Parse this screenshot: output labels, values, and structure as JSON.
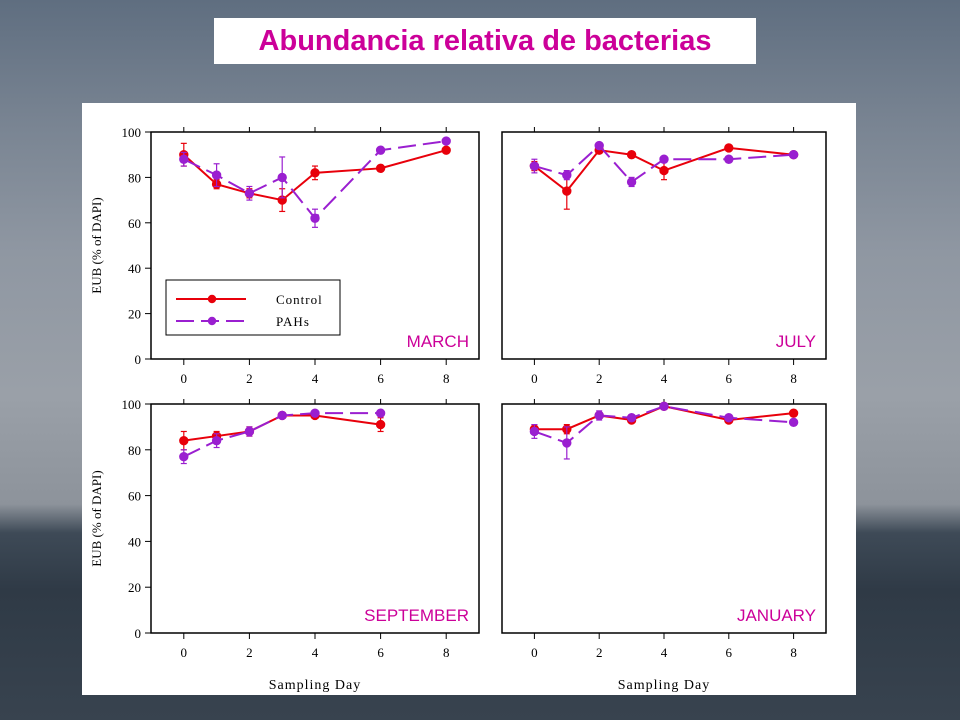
{
  "title": "Abundancia relativa de bacterias",
  "colors": {
    "title": "#cc0099",
    "control": "#e8000b",
    "pahs": "#9a1fd0",
    "month_label": "#cc0099"
  },
  "chart_data": [
    {
      "type": "line",
      "month": "MARCH",
      "xlabel": "",
      "ylabel": "EUB (% of DAPI)",
      "xlim": [
        -1,
        9
      ],
      "ylim": [
        0,
        100
      ],
      "xticks": [
        0,
        2,
        4,
        6,
        8
      ],
      "yticks": [
        0,
        20,
        40,
        60,
        80,
        100
      ],
      "legend": {
        "placement": "bottom-left",
        "entries": [
          "Control",
          "PAHs"
        ]
      },
      "series": [
        {
          "name": "Control",
          "x": [
            0,
            1,
            2,
            3,
            4,
            6,
            8
          ],
          "values": [
            90,
            77,
            73,
            70,
            82,
            84,
            92
          ],
          "err": [
            5,
            2,
            2,
            5,
            3,
            1,
            1
          ]
        },
        {
          "name": "PAHs",
          "x": [
            0,
            1,
            2,
            3,
            4,
            6,
            8
          ],
          "values": [
            88,
            81,
            73,
            80,
            62,
            92,
            96
          ],
          "err": [
            3,
            5,
            3,
            9,
            4,
            1,
            1
          ]
        }
      ]
    },
    {
      "type": "line",
      "month": "JULY",
      "xlabel": "",
      "ylabel": "",
      "xlim": [
        -1,
        9
      ],
      "ylim": [
        0,
        100
      ],
      "xticks": [
        0,
        2,
        4,
        6,
        8
      ],
      "yticks": [],
      "series": [
        {
          "name": "Control",
          "x": [
            0,
            1,
            2,
            3,
            4,
            6,
            8
          ],
          "values": [
            85,
            74,
            92,
            90,
            83,
            93,
            90
          ],
          "err": [
            2,
            8,
            1,
            1,
            4,
            1,
            1
          ]
        },
        {
          "name": "PAHs",
          "x": [
            0,
            1,
            2,
            3,
            4,
            6,
            8
          ],
          "values": [
            85,
            81,
            94,
            78,
            88,
            88,
            90
          ],
          "err": [
            3,
            2,
            1,
            2,
            1,
            1,
            1
          ]
        }
      ]
    },
    {
      "type": "line",
      "month": "SEPTEMBER",
      "xlabel": "Sampling Day",
      "ylabel": "EUB (% of DAPI)",
      "xlim": [
        -1,
        9
      ],
      "ylim": [
        0,
        100
      ],
      "xticks": [
        0,
        2,
        4,
        6,
        8
      ],
      "yticks": [
        0,
        20,
        40,
        60,
        80,
        100
      ],
      "series": [
        {
          "name": "Control",
          "x": [
            0,
            1,
            2,
            3,
            4,
            6
          ],
          "values": [
            84,
            86,
            88,
            95,
            95,
            91
          ],
          "err": [
            4,
            2,
            2,
            1,
            1,
            3
          ]
        },
        {
          "name": "PAHs",
          "x": [
            0,
            1,
            2,
            3,
            4,
            6
          ],
          "values": [
            77,
            84,
            88,
            95,
            96,
            96
          ],
          "err": [
            3,
            3,
            2,
            1,
            1,
            1
          ]
        }
      ]
    },
    {
      "type": "line",
      "month": "JANUARY",
      "xlabel": "Sampling Day",
      "ylabel": "",
      "xlim": [
        -1,
        9
      ],
      "ylim": [
        0,
        100
      ],
      "xticks": [
        0,
        2,
        4,
        6,
        8
      ],
      "yticks": [],
      "series": [
        {
          "name": "Control",
          "x": [
            0,
            1,
            2,
            3,
            4,
            6,
            8
          ],
          "values": [
            89,
            89,
            95,
            93,
            99,
            93,
            96
          ],
          "err": [
            2,
            2,
            1,
            1,
            1,
            1,
            1
          ]
        },
        {
          "name": "PAHs",
          "x": [
            0,
            1,
            2,
            3,
            4,
            6,
            8
          ],
          "values": [
            88,
            83,
            95,
            94,
            99,
            94,
            92
          ],
          "err": [
            3,
            7,
            2,
            1,
            1,
            1,
            1
          ]
        }
      ]
    }
  ]
}
